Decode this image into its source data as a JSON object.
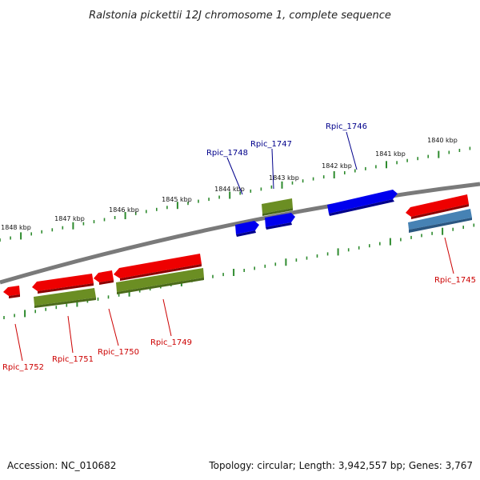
{
  "title": "Ralstonia pickettii 12J chromosome 1, complete sequence",
  "footer": {
    "accession": "Accession: NC_010682",
    "summary": "Topology: circular; Length: 3,942,557 bp; Genes: 3,767"
  },
  "colors": {
    "backbone": "#7a7a7a",
    "tick": "#2e8b2e",
    "forward_cds": "#0000ee",
    "forward_gene": "#6b8e23",
    "reverse_cds": "#ee0000",
    "reverse_gene": "#6b8e23",
    "rna": "#4682b4",
    "label_forward": "#00008b",
    "label_reverse": "#cc0000"
  },
  "scale_labels": [
    "1840 kbp",
    "1841 kbp",
    "1842 kbp",
    "1843 kbp",
    "1844 kbp",
    "1845 kbp",
    "1846 kbp",
    "1847 kbp",
    "1848 kbp"
  ],
  "gene_labels": {
    "forward": [
      "Rpic_1746",
      "Rpic_1747",
      "Rpic_1748"
    ],
    "reverse": [
      "Rpic_1745",
      "Rpic_1749",
      "Rpic_1750",
      "Rpic_1751",
      "Rpic_1752"
    ]
  }
}
